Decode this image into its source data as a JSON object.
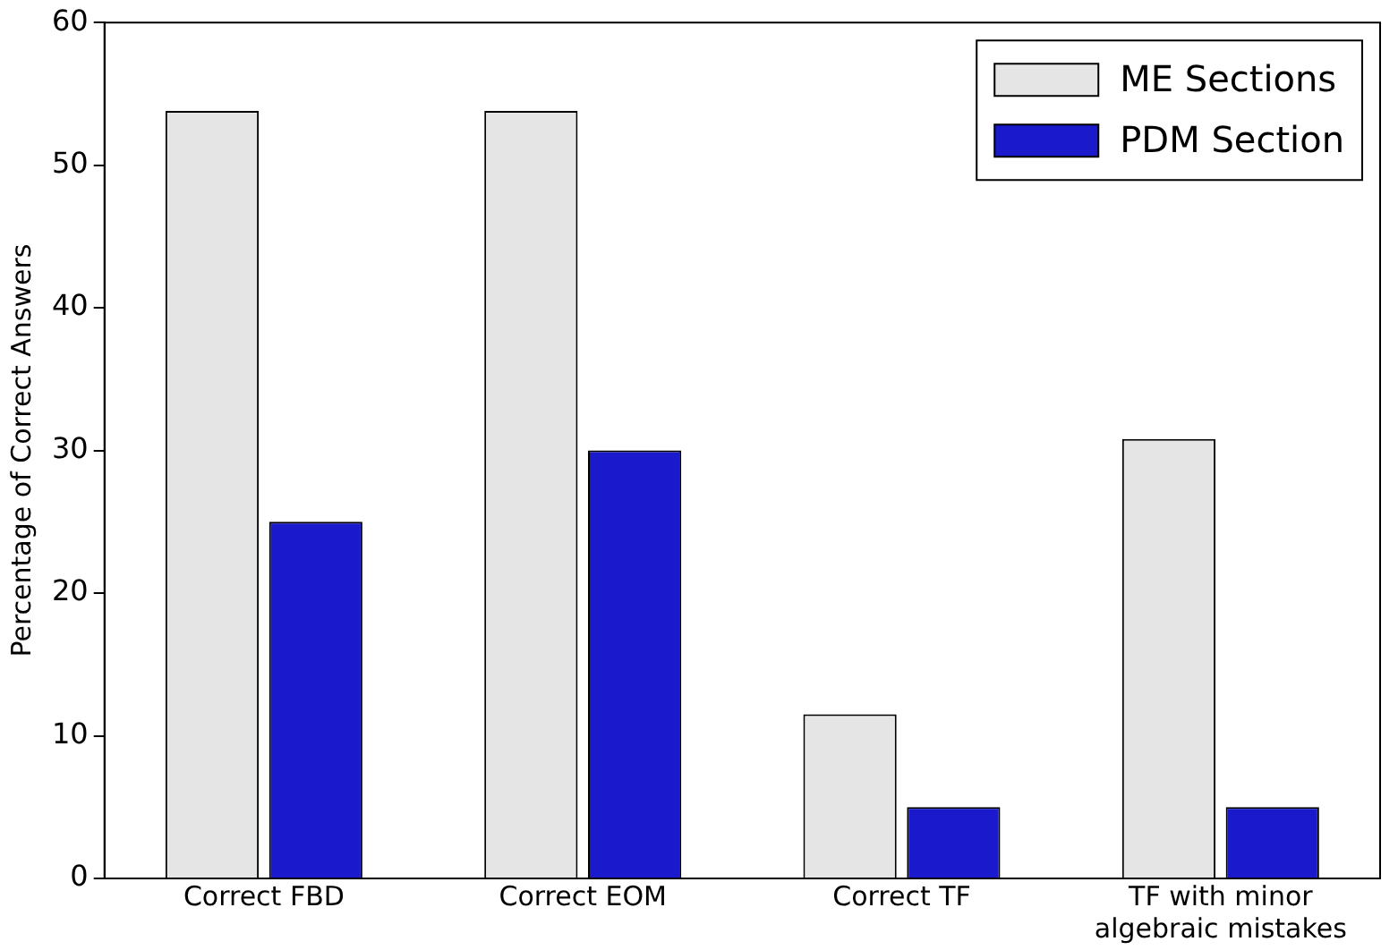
{
  "chart_data": {
    "type": "bar",
    "ylabel": "Percentage of Correct Answers",
    "categories": [
      "Correct FBD",
      "Correct EOM",
      "Correct TF",
      "TF with minor algebraic mistakes"
    ],
    "series": [
      {
        "name": "ME Sections",
        "color": "#e5e5e5",
        "values": [
          53.8,
          53.8,
          11.5,
          30.8
        ]
      },
      {
        "name": "PDM Section",
        "color": "#1a1acc",
        "values": [
          25,
          30,
          5,
          5
        ]
      }
    ],
    "ylim": [
      0,
      60
    ],
    "yticks": [
      0,
      10,
      20,
      30,
      40,
      50,
      60
    ],
    "grid": false,
    "legend": "top right"
  }
}
